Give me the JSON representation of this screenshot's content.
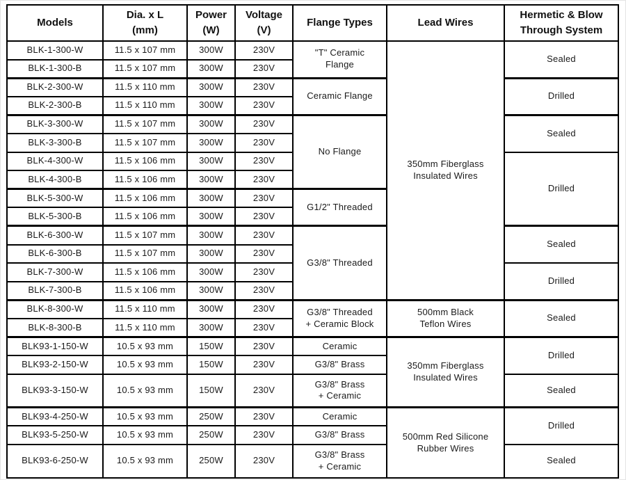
{
  "table": {
    "columns": [
      "Models",
      "Dia. x L\n(mm)",
      "Power\n(W)",
      "Voltage\n(V)",
      "Flange Types",
      "Lead Wires",
      "Hermetic & Blow\nThrough System"
    ],
    "rows": [
      {
        "cells": [
          {
            "t": "BLK-1-300-W"
          },
          {
            "t": "11.5 x 107 mm"
          },
          {
            "t": "300W"
          },
          {
            "t": "230V"
          },
          {
            "t": "\"T\" Ceramic\nFlange",
            "rs": 2
          },
          {
            "t": "350mm Fiberglass\nInsulated Wires",
            "rs": 14
          },
          {
            "t": "Sealed",
            "rs": 2
          }
        ]
      },
      {
        "cells": [
          {
            "t": "BLK-1-300-B"
          },
          {
            "t": "11.5 x 107 mm"
          },
          {
            "t": "300W"
          },
          {
            "t": "230V"
          }
        ]
      },
      {
        "cells": [
          {
            "t": "BLK-2-300-W"
          },
          {
            "t": "11.5 x 110 mm"
          },
          {
            "t": "300W"
          },
          {
            "t": "230V"
          },
          {
            "t": "Ceramic Flange",
            "rs": 2
          },
          {
            "t": "Drilled",
            "rs": 2
          }
        ]
      },
      {
        "cells": [
          {
            "t": "BLK-2-300-B"
          },
          {
            "t": "11.5 x 110 mm"
          },
          {
            "t": "300W"
          },
          {
            "t": "230V"
          }
        ]
      },
      {
        "cells": [
          {
            "t": "BLK-3-300-W"
          },
          {
            "t": "11.5 x 107 mm"
          },
          {
            "t": "300W"
          },
          {
            "t": "230V"
          },
          {
            "t": "No Flange",
            "rs": 4
          },
          {
            "t": "Sealed",
            "rs": 2
          }
        ]
      },
      {
        "cells": [
          {
            "t": "BLK-3-300-B"
          },
          {
            "t": "11.5 x 107 mm"
          },
          {
            "t": "300W"
          },
          {
            "t": "230V"
          }
        ]
      },
      {
        "cells": [
          {
            "t": "BLK-4-300-W"
          },
          {
            "t": "11.5 x 106 mm"
          },
          {
            "t": "300W"
          },
          {
            "t": "230V"
          },
          {
            "t": "Drilled",
            "rs": 4
          }
        ]
      },
      {
        "cells": [
          {
            "t": "BLK-4-300-B"
          },
          {
            "t": "11.5 x 106 mm"
          },
          {
            "t": "300W"
          },
          {
            "t": "230V"
          }
        ]
      },
      {
        "cells": [
          {
            "t": "BLK-5-300-W"
          },
          {
            "t": "11.5 x 106 mm"
          },
          {
            "t": "300W"
          },
          {
            "t": "230V"
          },
          {
            "t": "G1/2\" Threaded",
            "rs": 2
          }
        ]
      },
      {
        "cells": [
          {
            "t": "BLK-5-300-B"
          },
          {
            "t": "11.5 x 106 mm"
          },
          {
            "t": "300W"
          },
          {
            "t": "230V"
          }
        ]
      },
      {
        "cells": [
          {
            "t": "BLK-6-300-W"
          },
          {
            "t": "11.5 x 107 mm"
          },
          {
            "t": "300W"
          },
          {
            "t": "230V"
          },
          {
            "t": "G3/8\" Threaded",
            "rs": 4
          },
          {
            "t": "Sealed",
            "rs": 2
          }
        ]
      },
      {
        "cells": [
          {
            "t": "BLK-6-300-B"
          },
          {
            "t": "11.5 x 107 mm"
          },
          {
            "t": "300W"
          },
          {
            "t": "230V"
          }
        ]
      },
      {
        "cells": [
          {
            "t": "BLK-7-300-W"
          },
          {
            "t": "11.5 x 106 mm"
          },
          {
            "t": "300W"
          },
          {
            "t": "230V"
          },
          {
            "t": "Drilled",
            "rs": 2
          }
        ]
      },
      {
        "cells": [
          {
            "t": "BLK-7-300-B"
          },
          {
            "t": "11.5 x 106 mm"
          },
          {
            "t": "300W"
          },
          {
            "t": "230V"
          }
        ]
      },
      {
        "cells": [
          {
            "t": "BLK-8-300-W"
          },
          {
            "t": "11.5 x 110 mm"
          },
          {
            "t": "300W"
          },
          {
            "t": "230V"
          },
          {
            "t": "G3/8\" Threaded\n+ Ceramic Block",
            "rs": 2
          },
          {
            "t": "500mm Black\nTeflon Wires",
            "rs": 2
          },
          {
            "t": "Sealed",
            "rs": 2
          }
        ]
      },
      {
        "cells": [
          {
            "t": "BLK-8-300-B"
          },
          {
            "t": "11.5 x 110 mm"
          },
          {
            "t": "300W"
          },
          {
            "t": "230V"
          }
        ]
      },
      {
        "cells": [
          {
            "t": "BLK93-1-150-W"
          },
          {
            "t": "10.5 x 93 mm"
          },
          {
            "t": "150W"
          },
          {
            "t": "230V"
          },
          {
            "t": "Ceramic"
          },
          {
            "t": "350mm Fiberglass\nInsulated Wires",
            "rs": 3
          },
          {
            "t": "Drilled",
            "rs": 2
          }
        ]
      },
      {
        "cells": [
          {
            "t": "BLK93-2-150-W"
          },
          {
            "t": "10.5 x 93 mm"
          },
          {
            "t": "150W"
          },
          {
            "t": "230V"
          },
          {
            "t": "G3/8\" Brass"
          }
        ]
      },
      {
        "cells": [
          {
            "t": "BLK93-3-150-W"
          },
          {
            "t": "10.5 x 93 mm"
          },
          {
            "t": "150W"
          },
          {
            "t": "230V"
          },
          {
            "t": "G3/8\" Brass\n+ Ceramic"
          },
          {
            "t": "Sealed"
          }
        ]
      },
      {
        "cells": [
          {
            "t": "BLK93-4-250-W"
          },
          {
            "t": "10.5 x 93 mm"
          },
          {
            "t": "250W"
          },
          {
            "t": "230V"
          },
          {
            "t": "Ceramic"
          },
          {
            "t": "500mm Red Silicone\nRubber Wires",
            "rs": 3
          },
          {
            "t": "Drilled",
            "rs": 2
          }
        ]
      },
      {
        "cells": [
          {
            "t": "BLK93-5-250-W"
          },
          {
            "t": "10.5 x 93 mm"
          },
          {
            "t": "250W"
          },
          {
            "t": "230V"
          },
          {
            "t": "G3/8\" Brass"
          }
        ]
      },
      {
        "cells": [
          {
            "t": "BLK93-6-250-W"
          },
          {
            "t": "10.5 x 93 mm"
          },
          {
            "t": "250W"
          },
          {
            "t": "230V"
          },
          {
            "t": "G3/8\" Brass\n+ Ceramic"
          },
          {
            "t": "Sealed"
          }
        ]
      }
    ],
    "colors": {
      "border": "#000000",
      "text": "#1a1a1a",
      "background": "#ffffff"
    }
  }
}
